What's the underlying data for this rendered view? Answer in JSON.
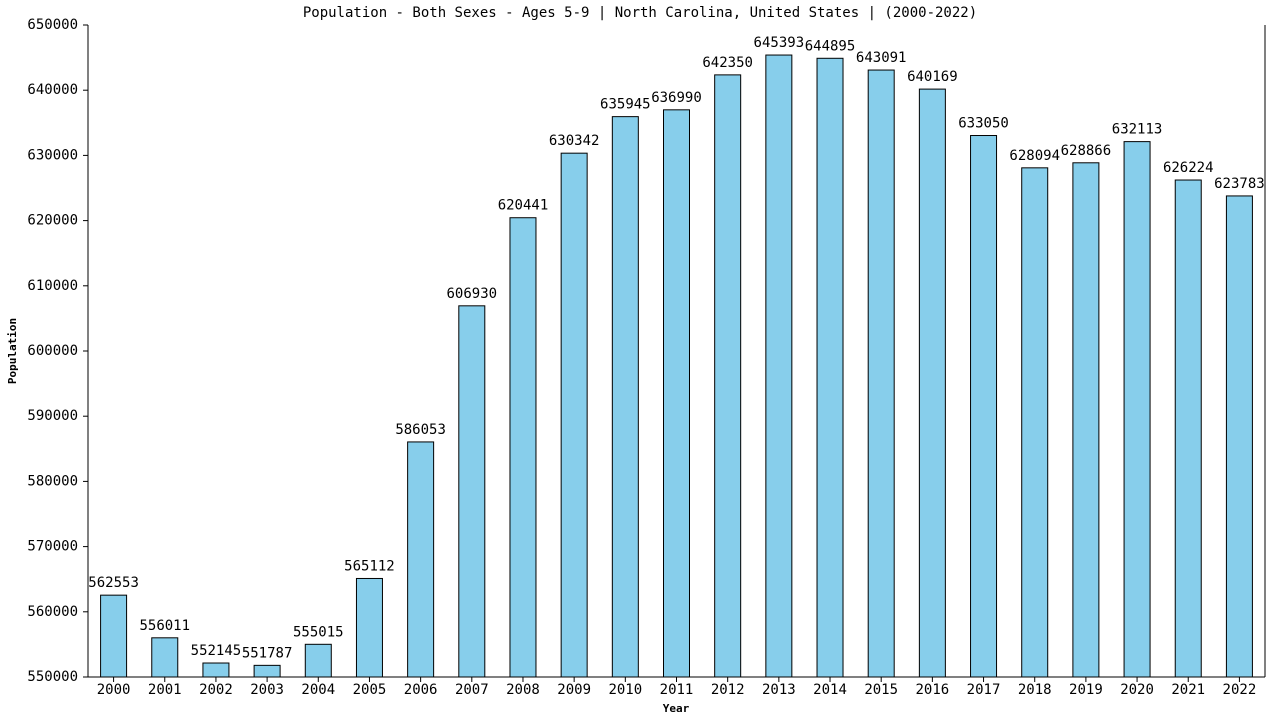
{
  "chart_data": {
    "type": "bar",
    "title": "Population - Both Sexes - Ages 5-9 | North Carolina, United States |  (2000-2022)",
    "x_label": "Year",
    "y_label": "Population",
    "categories": [
      "2000",
      "2001",
      "2002",
      "2003",
      "2004",
      "2005",
      "2006",
      "2007",
      "2008",
      "2009",
      "2010",
      "2011",
      "2012",
      "2013",
      "2014",
      "2015",
      "2016",
      "2017",
      "2018",
      "2019",
      "2020",
      "2021",
      "2022"
    ],
    "values": [
      562553,
      556011,
      552145,
      551787,
      555015,
      565112,
      586053,
      606930,
      620441,
      630342,
      635945,
      636990,
      642350,
      645393,
      644895,
      643091,
      640169,
      633050,
      628094,
      628866,
      632113,
      626224,
      623783
    ],
    "color": "#87ceeb",
    "ylim": [
      550000,
      650000
    ],
    "yticks": [
      550000,
      560000,
      570000,
      580000,
      590000,
      600000,
      610000,
      620000,
      630000,
      640000,
      650000
    ],
    "grid": false
  }
}
